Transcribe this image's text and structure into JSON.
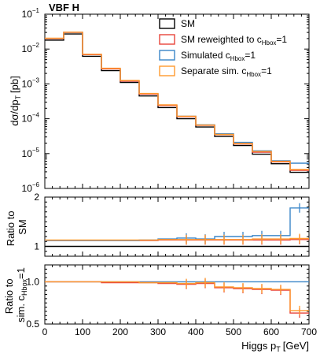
{
  "chart_data": {
    "type": "line",
    "process_label": "VBF H",
    "x_edges": [
      0,
      50,
      100,
      150,
      200,
      250,
      300,
      350,
      400,
      450,
      500,
      550,
      600,
      650,
      700
    ],
    "x_ticks": [
      "0",
      "100",
      "200",
      "300",
      "400",
      "500",
      "600",
      "700"
    ],
    "xlabel": "Higgs p",
    "xlabel_sub": "T",
    "xlabel_unit": "[GeV]",
    "panels": [
      {
        "id": "main",
        "ylabel": "dσ/dp",
        "ylabel_sub": "T",
        "ylabel_unit": "[pb]",
        "yscale": "log",
        "ylim": [
          1e-06,
          0.1
        ],
        "y_ticks": [
          {
            "base": "10",
            "exp": "−1"
          },
          {
            "base": "10",
            "exp": "−2"
          },
          {
            "base": "10",
            "exp": "−3"
          },
          {
            "base": "10",
            "exp": "−4"
          },
          {
            "base": "10",
            "exp": "−5"
          },
          {
            "base": "10",
            "exp": "−6"
          }
        ],
        "legend_position": "top-right",
        "series": [
          {
            "name": "SM",
            "color": "#000000",
            "values": [
              0.018,
              0.027,
              0.0062,
              0.0024,
              0.0011,
              0.00045,
              0.00021,
              0.0001,
              5.8e-05,
              3.1e-05,
              1.7e-05,
              9.6e-06,
              5.1e-06,
              2.9e-06
            ]
          },
          {
            "name": "SM reweighted to c",
            "name_sub": "Hbox",
            "name_suffix": "=1",
            "color": "#e8443a",
            "values": [
              0.02,
              0.03,
              0.0069,
              0.0027,
              0.0012,
              0.00051,
              0.00024,
              0.000115,
              6.5e-05,
              3.5e-05,
              1.9e-05,
              1.1e-05,
              5.8e-06,
              3.3e-06
            ]
          },
          {
            "name": "Simulated c",
            "name_sub": "Hbox",
            "name_suffix": "=1",
            "color": "#3a86c8",
            "values": [
              0.02,
              0.03,
              0.0069,
              0.0027,
              0.0012,
              0.00051,
              0.00024,
              0.000118,
              6.7e-05,
              3.7e-05,
              2.1e-05,
              1.2e-05,
              6.2e-06,
              5.3e-06
            ]
          },
          {
            "name": "Separate sim. c",
            "name_sub": "Hbox",
            "name_suffix": "=1",
            "color": "#ff9a2e",
            "values": [
              0.0205,
              0.0305,
              0.0071,
              0.0028,
              0.00125,
              0.00053,
              0.00025,
              0.000118,
              6.6e-05,
              3.55e-05,
              1.95e-05,
              1.15e-05,
              6e-06,
              3.5e-06
            ]
          }
        ]
      },
      {
        "id": "ratio1",
        "ylabel_lines": [
          "Ratio to",
          "SM"
        ],
        "yscale": "linear",
        "ylim": [
          0.8,
          2.0
        ],
        "y_ticks": [
          "2",
          "1"
        ],
        "y_tick_values": [
          2,
          1
        ],
        "series": [
          {
            "name": "SM",
            "color": "#000000",
            "values": [
              1,
              1,
              1,
              1,
              1,
              1,
              1,
              1,
              1,
              1,
              1,
              1,
              1,
              1
            ]
          },
          {
            "name": "SM reweighted",
            "color": "#e8443a",
            "values": [
              1.12,
              1.12,
              1.12,
              1.12,
              1.12,
              1.12,
              1.13,
              1.13,
              1.13,
              1.13,
              1.13,
              1.13,
              1.13,
              1.14
            ]
          },
          {
            "name": "Simulated",
            "color": "#3a86c8",
            "values": [
              1.12,
              1.12,
              1.12,
              1.12,
              1.12,
              1.13,
              1.15,
              1.17,
              1.15,
              1.2,
              1.2,
              1.22,
              1.22,
              1.78
            ]
          },
          {
            "name": "Separate sim.",
            "color": "#ff9a2e",
            "values": [
              1.13,
              1.13,
              1.13,
              1.13,
              1.13,
              1.13,
              1.14,
              1.14,
              1.14,
              1.14,
              1.14,
              1.15,
              1.15,
              1.16
            ]
          }
        ]
      },
      {
        "id": "ratio2",
        "ylabel_lines": [
          "Ratio to",
          "sim. c"
        ],
        "ylabel_sub": "Hbox",
        "ylabel_suffix": "=1",
        "yscale": "linear",
        "ylim": [
          0.5,
          1.2
        ],
        "y_ticks": [
          "1.0",
          "0.5"
        ],
        "y_tick_values": [
          1.0,
          0.5
        ],
        "series": [
          {
            "name": "Simulated",
            "color": "#3a86c8",
            "values": [
              1,
              1,
              1,
              1,
              1,
              1,
              1,
              1,
              1,
              1,
              1,
              1,
              1,
              1
            ]
          },
          {
            "name": "SM reweighted",
            "color": "#e8443a",
            "values": [
              1.0,
              1.0,
              1.0,
              0.99,
              0.99,
              0.99,
              0.98,
              0.97,
              0.98,
              0.93,
              0.92,
              0.91,
              0.9,
              0.63
            ]
          },
          {
            "name": "Separate sim.",
            "color": "#ff9a2e",
            "values": [
              1.0,
              1.0,
              1.0,
              1.0,
              1.0,
              0.99,
              0.99,
              0.98,
              0.99,
              0.94,
              0.93,
              0.92,
              0.91,
              0.66
            ]
          }
        ]
      }
    ]
  }
}
